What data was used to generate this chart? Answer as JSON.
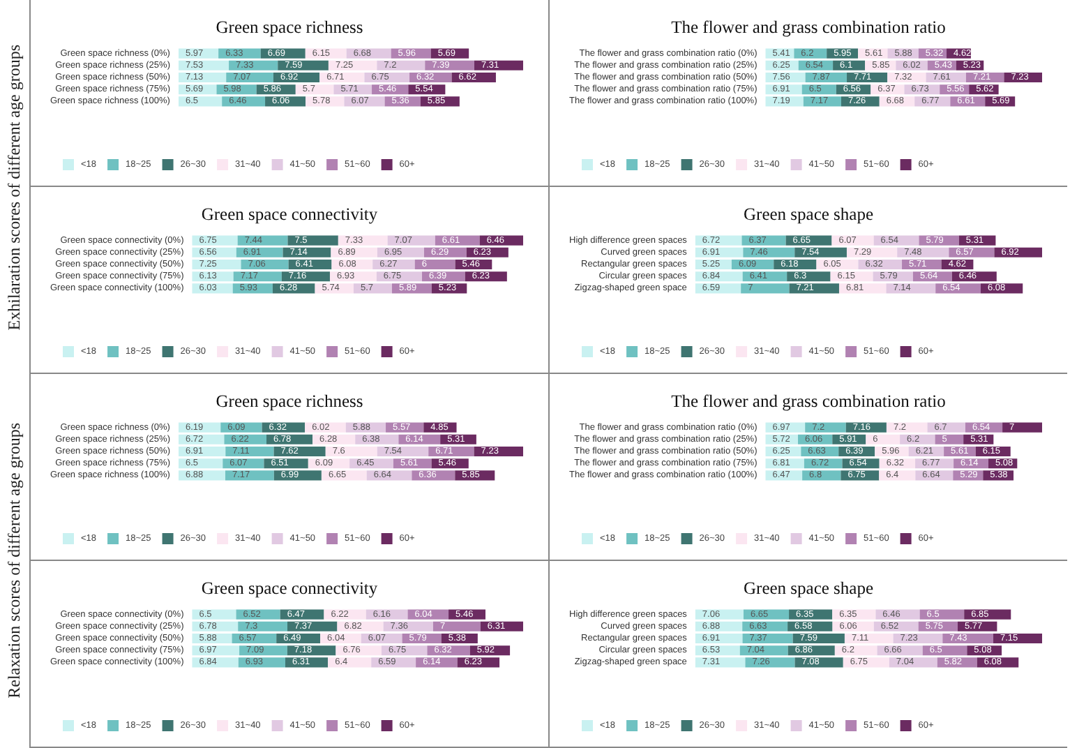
{
  "chart_data": [
    {
      "type": "bar",
      "orientation": "horizontal",
      "stacked": true,
      "data_labels": true,
      "legend": "bottom left",
      "title": "Green space richness",
      "annotations": [
        "Exhilaration scores of different age groups"
      ],
      "categories": [
        "Green space richness (0%)",
        "Green space richness (25%)",
        "Green space richness (50%)",
        "Green space richness (75%)",
        "Green space richness (100%)"
      ],
      "series": [
        {
          "name": "<18",
          "color": "#c9f1f1",
          "values": [
            5.97,
            7.53,
            7.13,
            5.69,
            6.5
          ]
        },
        {
          "name": "18~25",
          "color": "#6fc1c1",
          "values": [
            6.33,
            7.33,
            7.07,
            5.98,
            6.46
          ]
        },
        {
          "name": "26~30",
          "color": "#3f7571",
          "values": [
            6.69,
            7.59,
            6.92,
            5.86,
            6.06
          ]
        },
        {
          "name": "31~40",
          "color": "#fbe6f1",
          "values": [
            6.15,
            7.25,
            6.71,
            5.7,
            5.78
          ]
        },
        {
          "name": "41~50",
          "color": "#e1c9e2",
          "values": [
            6.68,
            7.2,
            6.75,
            5.71,
            6.07
          ]
        },
        {
          "name": "51~60",
          "color": "#b182b2",
          "values": [
            5.96,
            7.39,
            6.32,
            5.46,
            5.36
          ]
        },
        {
          "name": "60+",
          "color": "#6b2b61",
          "values": [
            5.69,
            7.31,
            6.62,
            5.54,
            5.85
          ]
        }
      ]
    },
    {
      "type": "bar",
      "orientation": "horizontal",
      "stacked": true,
      "data_labels": true,
      "legend": "bottom left",
      "title": "The flower and grass combination ratio",
      "categories": [
        "The flower and grass combination ratio (0%)",
        "The flower and grass combination ratio (25%)",
        "The flower and grass combination ratio (50%)",
        "The flower and grass combination ratio (75%)",
        "The flower and grass combination ratio (100%)"
      ],
      "series": [
        {
          "name": "<18",
          "color": "#c9f1f1",
          "values": [
            5.41,
            6.25,
            7.56,
            6.91,
            7.19
          ]
        },
        {
          "name": "18~25",
          "color": "#6fc1c1",
          "values": [
            6.2,
            6.54,
            7.87,
            6.5,
            7.17
          ]
        },
        {
          "name": "26~30",
          "color": "#3f7571",
          "values": [
            5.95,
            6.1,
            7.71,
            6.56,
            7.26
          ]
        },
        {
          "name": "31~40",
          "color": "#fbe6f1",
          "values": [
            5.61,
            5.85,
            7.32,
            6.37,
            6.68
          ]
        },
        {
          "name": "41~50",
          "color": "#e1c9e2",
          "values": [
            5.88,
            6.02,
            7.61,
            6.73,
            6.77
          ]
        },
        {
          "name": "51~60",
          "color": "#b182b2",
          "values": [
            5.32,
            5.43,
            7.21,
            5.56,
            6.61
          ]
        },
        {
          "name": "60+",
          "color": "#6b2b61",
          "values": [
            4.62,
            5.23,
            7.23,
            5.62,
            5.69
          ]
        }
      ]
    },
    {
      "type": "bar",
      "orientation": "horizontal",
      "stacked": true,
      "data_labels": true,
      "legend": "bottom left",
      "title": "Green space connectivity",
      "categories": [
        "Green space connectivity (0%)",
        "Green space connectivity (25%)",
        "Green space connectivity (50%)",
        "Green space connectivity (75%)",
        "Green space connectivity (100%)"
      ],
      "series": [
        {
          "name": "<18",
          "color": "#c9f1f1",
          "values": [
            6.75,
            6.56,
            7.25,
            6.13,
            6.03
          ]
        },
        {
          "name": "18~25",
          "color": "#6fc1c1",
          "values": [
            7.44,
            6.91,
            7.06,
            7.17,
            5.93
          ]
        },
        {
          "name": "26~30",
          "color": "#3f7571",
          "values": [
            7.5,
            7.14,
            6.41,
            7.16,
            6.28
          ]
        },
        {
          "name": "31~40",
          "color": "#fbe6f1",
          "values": [
            7.33,
            6.89,
            6.08,
            6.93,
            5.74
          ]
        },
        {
          "name": "41~50",
          "color": "#e1c9e2",
          "values": [
            7.07,
            6.95,
            6.27,
            6.75,
            5.7
          ]
        },
        {
          "name": "51~60",
          "color": "#b182b2",
          "values": [
            6.61,
            6.29,
            6,
            6.39,
            5.89
          ]
        },
        {
          "name": "60+",
          "color": "#6b2b61",
          "values": [
            6.46,
            6.23,
            5.46,
            6.23,
            5.23
          ]
        }
      ]
    },
    {
      "type": "bar",
      "orientation": "horizontal",
      "stacked": true,
      "data_labels": true,
      "legend": "bottom left",
      "title": "Green space shape",
      "categories": [
        "High difference green spaces",
        "Curved green spaces",
        "Rectangular green spaces",
        "Circular green spaces",
        "Zigzag-shaped green space"
      ],
      "series": [
        {
          "name": "<18",
          "color": "#c9f1f1",
          "values": [
            6.72,
            6.91,
            5.25,
            6.84,
            6.59
          ]
        },
        {
          "name": "18~25",
          "color": "#6fc1c1",
          "values": [
            6.37,
            7.46,
            6.09,
            6.41,
            7
          ]
        },
        {
          "name": "26~30",
          "color": "#3f7571",
          "values": [
            6.65,
            7.54,
            6.18,
            6.3,
            7.21
          ]
        },
        {
          "name": "31~40",
          "color": "#fbe6f1",
          "values": [
            6.07,
            7.29,
            6.05,
            6.15,
            6.81
          ]
        },
        {
          "name": "41~50",
          "color": "#e1c9e2",
          "values": [
            6.54,
            7.48,
            6.32,
            5.79,
            7.14
          ]
        },
        {
          "name": "51~60",
          "color": "#b182b2",
          "values": [
            5.79,
            6.57,
            5.71,
            5.64,
            6.54
          ]
        },
        {
          "name": "60+",
          "color": "#6b2b61",
          "values": [
            5.31,
            6.92,
            4.62,
            6.46,
            6.08
          ]
        }
      ]
    },
    {
      "type": "bar",
      "orientation": "horizontal",
      "stacked": true,
      "data_labels": true,
      "legend": "bottom left",
      "title": "Green space richness",
      "annotations": [
        "Relaxation scores of different age groups"
      ],
      "categories": [
        "Green space richness (0%)",
        "Green space richness (25%)",
        "Green space richness (50%)",
        "Green space richness (75%)",
        "Green space richness (100%)"
      ],
      "series": [
        {
          "name": "<18",
          "color": "#c9f1f1",
          "values": [
            6.19,
            6.72,
            6.91,
            6.5,
            6.88
          ]
        },
        {
          "name": "18~25",
          "color": "#6fc1c1",
          "values": [
            6.09,
            6.22,
            7.11,
            6.07,
            7.17
          ]
        },
        {
          "name": "26~30",
          "color": "#3f7571",
          "values": [
            6.32,
            6.78,
            7.62,
            6.51,
            6.99
          ]
        },
        {
          "name": "31~40",
          "color": "#fbe6f1",
          "values": [
            6.02,
            6.28,
            7.6,
            6.09,
            6.65
          ]
        },
        {
          "name": "41~50",
          "color": "#e1c9e2",
          "values": [
            5.88,
            6.38,
            7.54,
            6.45,
            6.64
          ]
        },
        {
          "name": "51~60",
          "color": "#b182b2",
          "values": [
            5.57,
            6.14,
            6.71,
            5.61,
            6.36
          ]
        },
        {
          "name": "60+",
          "color": "#6b2b61",
          "values": [
            4.85,
            5.31,
            7.23,
            5.46,
            5.85
          ]
        }
      ]
    },
    {
      "type": "bar",
      "orientation": "horizontal",
      "stacked": true,
      "data_labels": true,
      "legend": "bottom left",
      "title": "The flower and grass combination ratio",
      "categories": [
        "The flower and grass combination ratio (0%)",
        "The flower and grass combination ratio (25%)",
        "The flower and grass combination ratio (50%)",
        "The flower and grass combination ratio (75%)",
        "The flower and grass combination ratio (100%)"
      ],
      "series": [
        {
          "name": "<18",
          "color": "#c9f1f1",
          "values": [
            6.97,
            5.72,
            6.25,
            6.81,
            6.47
          ]
        },
        {
          "name": "18~25",
          "color": "#6fc1c1",
          "values": [
            7.2,
            6.06,
            6.63,
            6.72,
            6.8
          ]
        },
        {
          "name": "26~30",
          "color": "#3f7571",
          "values": [
            7.16,
            5.91,
            6.39,
            6.54,
            6.75
          ]
        },
        {
          "name": "31~40",
          "color": "#fbe6f1",
          "values": [
            7.2,
            6,
            5.96,
            6.32,
            6.4
          ]
        },
        {
          "name": "41~50",
          "color": "#e1c9e2",
          "values": [
            6.7,
            6.2,
            6.21,
            6.77,
            6.64
          ]
        },
        {
          "name": "51~60",
          "color": "#b182b2",
          "values": [
            6.54,
            5,
            5.61,
            6.14,
            5.29
          ]
        },
        {
          "name": "60+",
          "color": "#6b2b61",
          "values": [
            7,
            5.31,
            6.15,
            5.08,
            5.38
          ]
        }
      ]
    },
    {
      "type": "bar",
      "orientation": "horizontal",
      "stacked": true,
      "data_labels": true,
      "legend": "bottom left",
      "title": "Green space connectivity",
      "categories": [
        "Green space connectivity (0%)",
        "Green space connectivity (25%)",
        "Green space connectivity (50%)",
        "Green space connectivity (75%)",
        "Green space connectivity (100%)"
      ],
      "series": [
        {
          "name": "<18",
          "color": "#c9f1f1",
          "values": [
            6.5,
            6.78,
            5.88,
            6.97,
            6.84
          ]
        },
        {
          "name": "18~25",
          "color": "#6fc1c1",
          "values": [
            6.52,
            7.3,
            6.57,
            7.09,
            6.93
          ]
        },
        {
          "name": "26~30",
          "color": "#3f7571",
          "values": [
            6.47,
            7.37,
            6.49,
            7.18,
            6.31
          ]
        },
        {
          "name": "31~40",
          "color": "#fbe6f1",
          "values": [
            6.22,
            6.82,
            6.04,
            6.76,
            6.4
          ]
        },
        {
          "name": "41~50",
          "color": "#e1c9e2",
          "values": [
            6.16,
            7.36,
            6.07,
            6.75,
            6.59
          ]
        },
        {
          "name": "51~60",
          "color": "#b182b2",
          "values": [
            6.04,
            7,
            5.79,
            6.32,
            6.14
          ]
        },
        {
          "name": "60+",
          "color": "#6b2b61",
          "values": [
            5.46,
            6.31,
            5.38,
            5.92,
            6.23
          ]
        }
      ]
    },
    {
      "type": "bar",
      "orientation": "horizontal",
      "stacked": true,
      "data_labels": true,
      "legend": "bottom left",
      "title": "Green space shape",
      "categories": [
        "High difference green spaces",
        "Curved green spaces",
        "Rectangular green spaces",
        "Circular green spaces",
        "Zigzag-shaped green space"
      ],
      "series": [
        {
          "name": "<18",
          "color": "#c9f1f1",
          "values": [
            7.06,
            6.88,
            6.91,
            6.53,
            7.31
          ]
        },
        {
          "name": "18~25",
          "color": "#6fc1c1",
          "values": [
            6.65,
            6.63,
            7.37,
            7.04,
            7.26
          ]
        },
        {
          "name": "26~30",
          "color": "#3f7571",
          "values": [
            6.35,
            6.58,
            7.59,
            6.86,
            7.08
          ]
        },
        {
          "name": "31~40",
          "color": "#fbe6f1",
          "values": [
            6.35,
            6.06,
            7.11,
            6.2,
            6.75
          ]
        },
        {
          "name": "41~50",
          "color": "#e1c9e2",
          "values": [
            6.46,
            6.52,
            7.23,
            6.66,
            7.04
          ]
        },
        {
          "name": "51~60",
          "color": "#b182b2",
          "values": [
            6.5,
            5.75,
            7.43,
            6.5,
            5.82
          ]
        },
        {
          "name": "60+",
          "color": "#6b2b61",
          "values": [
            6.85,
            5.77,
            7.15,
            5.08,
            6.08
          ]
        }
      ]
    }
  ]
}
